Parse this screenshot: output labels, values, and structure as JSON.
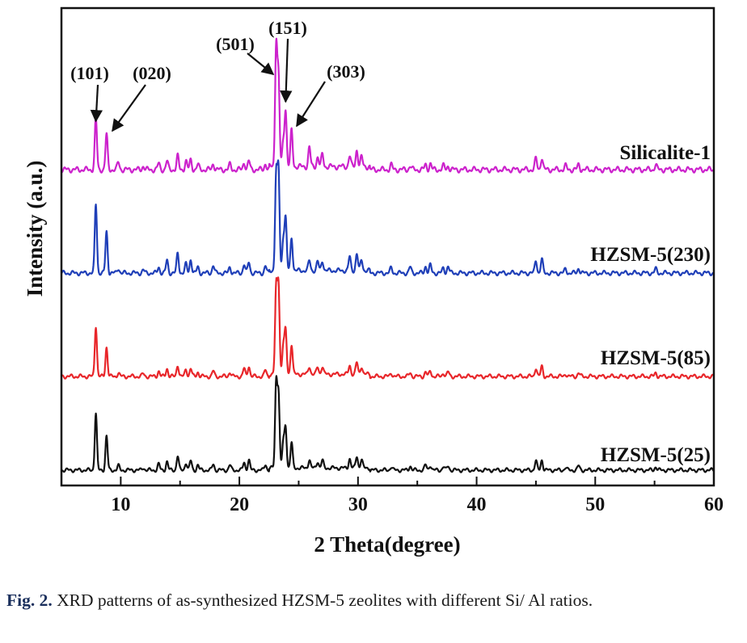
{
  "chart_data": {
    "type": "line",
    "xlabel": "2 Theta(degree)",
    "ylabel": "Intensity (a.u.)",
    "xlim": [
      5,
      60
    ],
    "x_ticks": [
      10,
      20,
      30,
      40,
      50,
      60
    ],
    "y_ticks_shown": false,
    "grid": false,
    "legend": "inline labels at right end of each trace",
    "peaks_2theta": [
      7.9,
      8.8,
      9.8,
      11.9,
      13.2,
      13.9,
      14.8,
      15.5,
      15.9,
      16.5,
      17.8,
      19.2,
      20.4,
      20.8,
      22.2,
      23.1,
      23.3,
      23.7,
      23.9,
      24.4,
      25.9,
      26.6,
      27.0,
      29.3,
      29.9,
      30.3,
      32.8,
      34.4,
      35.7,
      36.1,
      37.2,
      37.6,
      45.0,
      45.5,
      47.5,
      48.6,
      55.1
    ],
    "series": [
      {
        "name": "Silicalite-1",
        "color": "#cc22cc",
        "peak_heights": [
          0.42,
          0.29,
          0.06,
          0.03,
          0.05,
          0.07,
          0.11,
          0.07,
          0.08,
          0.04,
          0.05,
          0.04,
          0.06,
          0.07,
          0.05,
          1.0,
          0.72,
          0.2,
          0.46,
          0.3,
          0.16,
          0.08,
          0.1,
          0.09,
          0.14,
          0.08,
          0.04,
          0.03,
          0.04,
          0.05,
          0.03,
          0.03,
          0.09,
          0.1,
          0.03,
          0.04,
          0.04
        ]
      },
      {
        "name": "HZSM-5(230)",
        "color": "#1f3fb8",
        "peak_heights": [
          0.7,
          0.42,
          0.05,
          0.03,
          0.06,
          0.13,
          0.2,
          0.09,
          0.14,
          0.06,
          0.08,
          0.06,
          0.09,
          0.11,
          0.07,
          0.95,
          1.0,
          0.32,
          0.52,
          0.34,
          0.1,
          0.09,
          0.1,
          0.14,
          0.17,
          0.11,
          0.05,
          0.06,
          0.07,
          0.08,
          0.05,
          0.07,
          0.13,
          0.14,
          0.04,
          0.05,
          0.04
        ]
      },
      {
        "name": "HZSM-5(85)",
        "color": "#e8262a",
        "peak_heights": [
          0.57,
          0.33,
          0.04,
          0.03,
          0.06,
          0.09,
          0.13,
          0.08,
          0.09,
          0.05,
          0.06,
          0.05,
          0.09,
          0.12,
          0.07,
          0.95,
          1.0,
          0.32,
          0.48,
          0.34,
          0.09,
          0.08,
          0.09,
          0.1,
          0.13,
          0.09,
          0.04,
          0.04,
          0.05,
          0.06,
          0.04,
          0.05,
          0.1,
          0.11,
          0.03,
          0.04,
          0.04
        ]
      },
      {
        "name": "HZSM-5(25)",
        "color": "#111111",
        "peak_heights": [
          0.67,
          0.4,
          0.05,
          0.03,
          0.07,
          0.1,
          0.17,
          0.09,
          0.11,
          0.06,
          0.07,
          0.06,
          0.09,
          0.12,
          0.07,
          1.0,
          0.87,
          0.3,
          0.48,
          0.3,
          0.1,
          0.08,
          0.09,
          0.11,
          0.14,
          0.1,
          0.04,
          0.05,
          0.06,
          0.06,
          0.04,
          0.05,
          0.11,
          0.12,
          0.03,
          0.05,
          0.04
        ]
      }
    ],
    "annotations": [
      {
        "text": "(101)",
        "peak_2theta": 7.9,
        "arrow": "vertical"
      },
      {
        "text": "(020)",
        "peak_2theta": 8.8,
        "arrow": "diagonal"
      },
      {
        "text": "(501)",
        "peak_2theta": 23.1,
        "arrow": "diagonal"
      },
      {
        "text": "(151)",
        "peak_2theta": 23.9,
        "arrow": "vertical"
      },
      {
        "text": "(303)",
        "peak_2theta": 24.4,
        "arrow": "diagonal"
      }
    ]
  },
  "caption": {
    "fig_label": "Fig. 2.",
    "text": "XRD patterns of as-synthesized HZSM-5 zeolites with different Si/ Al ratios."
  }
}
